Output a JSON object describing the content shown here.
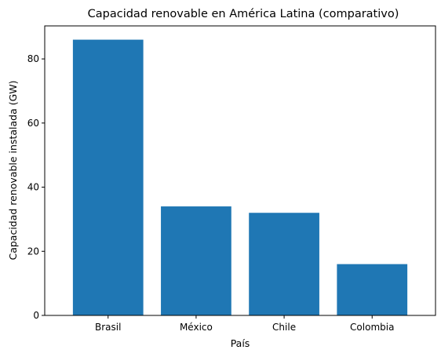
{
  "chart_data": {
    "type": "bar",
    "title": "Capacidad renovable en América Latina (comparativo)",
    "xlabel": "País",
    "ylabel": "Capacidad renovable instalada (GW)",
    "categories": [
      "Brasil",
      "México",
      "Chile",
      "Colombia"
    ],
    "values": [
      86,
      34,
      32,
      16
    ],
    "ylim": [
      0,
      90.3
    ],
    "yticks": [
      0,
      20,
      40,
      60,
      80
    ],
    "grid": false,
    "bar_color": "#1f77b4"
  }
}
